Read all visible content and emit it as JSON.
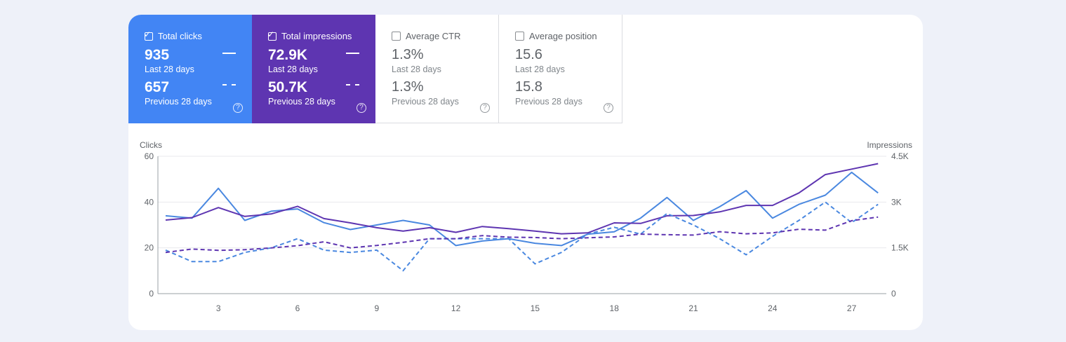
{
  "metrics": [
    {
      "label": "Total clicks",
      "checked": true,
      "value": "935",
      "period": "Last 28 days",
      "prev_value": "657",
      "prev_period": "Previous 28 days",
      "color": "#4285f4"
    },
    {
      "label": "Total impressions",
      "checked": true,
      "value": "72.9K",
      "period": "Last 28 days",
      "prev_value": "50.7K",
      "prev_period": "Previous 28 days",
      "color": "#5e35b1"
    },
    {
      "label": "Average CTR",
      "checked": false,
      "value": "1.3%",
      "period": "Last 28 days",
      "prev_value": "1.3%",
      "prev_period": "Previous 28 days"
    },
    {
      "label": "Average position",
      "checked": false,
      "value": "15.6",
      "period": "Last 28 days",
      "prev_value": "15.8",
      "prev_period": "Previous 28 days"
    }
  ],
  "icons": {
    "checkbox": "check-icon",
    "help": "help-circle-icon",
    "line_solid": "solid-line-legend-icon",
    "line_dashed": "dashed-line-legend-icon"
  },
  "chart_data": {
    "type": "line",
    "ylabel_left": "Clicks",
    "ylabel_right": "Impressions",
    "y_left_ticks": [
      "60",
      "40",
      "20",
      "0"
    ],
    "y_right_ticks": [
      "4.5K",
      "3K",
      "1.5K",
      "0"
    ],
    "x_ticks": [
      "3",
      "6",
      "9",
      "12",
      "15",
      "18",
      "21",
      "24",
      "27"
    ],
    "ylim_left": [
      0,
      60
    ],
    "ylim_right": [
      0,
      4500
    ],
    "x": [
      1,
      2,
      3,
      4,
      5,
      6,
      7,
      8,
      9,
      10,
      11,
      12,
      13,
      14,
      15,
      16,
      17,
      18,
      19,
      20,
      21,
      22,
      23,
      24,
      25,
      26,
      27,
      28
    ],
    "series": [
      {
        "axis": "left",
        "style": "solid",
        "color": "#4a88e0",
        "values": [
          34,
          33,
          46,
          32,
          36,
          37,
          31,
          28,
          30,
          32,
          30,
          21,
          23,
          24,
          22,
          21,
          26,
          27,
          33,
          42,
          32,
          38,
          45,
          33,
          39,
          43,
          53,
          44
        ]
      },
      {
        "axis": "right",
        "style": "solid",
        "color": "#5e35b1",
        "values": [
          2410,
          2490,
          2820,
          2530,
          2610,
          2860,
          2460,
          2320,
          2160,
          2050,
          2160,
          2010,
          2200,
          2130,
          2050,
          1960,
          1990,
          2320,
          2300,
          2550,
          2560,
          2680,
          2890,
          2890,
          3300,
          3900,
          4080,
          4260
        ]
      },
      {
        "axis": "left",
        "style": "dashed",
        "color": "#4a88e0",
        "values": [
          19,
          14,
          14,
          18,
          20,
          24,
          19,
          18,
          19,
          10,
          24,
          24,
          24,
          24,
          13,
          18,
          26,
          29,
          26,
          35,
          30,
          24,
          17,
          25,
          32,
          40,
          31,
          39
        ]
      },
      {
        "axis": "right",
        "style": "dashed",
        "color": "#5e35b1",
        "values": [
          1350,
          1460,
          1420,
          1440,
          1500,
          1570,
          1700,
          1500,
          1580,
          1680,
          1800,
          1800,
          1900,
          1850,
          1840,
          1800,
          1830,
          1860,
          1950,
          1930,
          1920,
          2030,
          1960,
          1990,
          2110,
          2080,
          2390,
          2510
        ]
      }
    ]
  }
}
